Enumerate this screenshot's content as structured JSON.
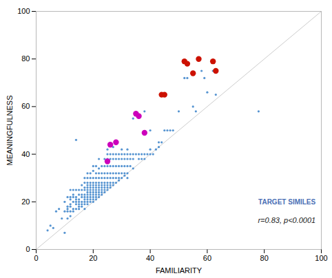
{
  "chart_data": {
    "type": "scatter",
    "title": "",
    "xlabel": "FAMILIARITY",
    "ylabel": "MEANINGFULNESS",
    "xlim": [
      0,
      100
    ],
    "ylim": [
      0,
      100
    ],
    "xticks": [
      0,
      20,
      40,
      60,
      80,
      100
    ],
    "yticks": [
      0,
      20,
      40,
      60,
      80,
      100
    ],
    "grid": false,
    "reference_line": {
      "x": [
        0,
        100
      ],
      "y": [
        0,
        100
      ],
      "color": "#cccccc"
    },
    "series": [
      {
        "color": "#4488cc",
        "marker": "small",
        "values": [
          [
            4,
            8
          ],
          [
            5,
            10
          ],
          [
            6,
            9
          ],
          [
            7,
            16
          ],
          [
            8,
            17
          ],
          [
            9,
            13
          ],
          [
            10,
            7
          ],
          [
            10,
            16
          ],
          [
            10,
            20
          ],
          [
            11,
            13
          ],
          [
            11,
            16
          ],
          [
            11,
            17
          ],
          [
            11,
            18
          ],
          [
            11,
            22
          ],
          [
            12,
            14
          ],
          [
            12,
            16
          ],
          [
            12,
            18
          ],
          [
            12,
            19
          ],
          [
            12,
            21
          ],
          [
            12,
            22
          ],
          [
            12,
            25
          ],
          [
            13,
            16
          ],
          [
            13,
            17
          ],
          [
            13,
            20
          ],
          [
            13,
            22
          ],
          [
            13,
            23
          ],
          [
            13,
            25
          ],
          [
            14,
            17
          ],
          [
            14,
            19
          ],
          [
            14,
            20
          ],
          [
            14,
            21
          ],
          [
            14,
            22
          ],
          [
            14,
            25
          ],
          [
            14,
            46
          ],
          [
            15,
            17
          ],
          [
            15,
            18
          ],
          [
            15,
            19
          ],
          [
            15,
            20
          ],
          [
            15,
            21
          ],
          [
            15,
            23
          ],
          [
            15,
            25
          ],
          [
            16,
            18
          ],
          [
            16,
            19
          ],
          [
            16,
            20
          ],
          [
            16,
            22
          ],
          [
            16,
            23
          ],
          [
            16,
            25
          ],
          [
            16,
            27
          ],
          [
            17,
            17
          ],
          [
            17,
            19
          ],
          [
            17,
            20
          ],
          [
            17,
            21
          ],
          [
            17,
            22
          ],
          [
            17,
            23
          ],
          [
            17,
            25
          ],
          [
            17,
            26
          ],
          [
            17,
            28
          ],
          [
            17,
            30
          ],
          [
            18,
            19
          ],
          [
            18,
            20
          ],
          [
            18,
            21
          ],
          [
            18,
            22
          ],
          [
            18,
            23
          ],
          [
            18,
            24
          ],
          [
            18,
            25
          ],
          [
            18,
            26
          ],
          [
            18,
            27
          ],
          [
            18,
            28
          ],
          [
            18,
            30
          ],
          [
            18,
            32
          ],
          [
            19,
            20
          ],
          [
            19,
            21
          ],
          [
            19,
            22
          ],
          [
            19,
            23
          ],
          [
            19,
            24
          ],
          [
            19,
            25
          ],
          [
            19,
            26
          ],
          [
            19,
            27
          ],
          [
            19,
            28
          ],
          [
            19,
            30
          ],
          [
            19,
            32
          ],
          [
            20,
            20
          ],
          [
            20,
            21
          ],
          [
            20,
            22
          ],
          [
            20,
            23
          ],
          [
            20,
            24
          ],
          [
            20,
            25
          ],
          [
            20,
            26
          ],
          [
            20,
            27
          ],
          [
            20,
            28
          ],
          [
            20,
            30
          ],
          [
            20,
            33
          ],
          [
            20,
            35
          ],
          [
            21,
            21
          ],
          [
            21,
            22
          ],
          [
            21,
            23
          ],
          [
            21,
            24
          ],
          [
            21,
            25
          ],
          [
            21,
            26
          ],
          [
            21,
            27
          ],
          [
            21,
            28
          ],
          [
            21,
            30
          ],
          [
            21,
            32
          ],
          [
            21,
            35
          ],
          [
            22,
            22
          ],
          [
            22,
            23
          ],
          [
            22,
            24
          ],
          [
            22,
            25
          ],
          [
            22,
            26
          ],
          [
            22,
            27
          ],
          [
            22,
            28
          ],
          [
            22,
            30
          ],
          [
            22,
            32
          ],
          [
            22,
            34
          ],
          [
            22,
            38
          ],
          [
            23,
            23
          ],
          [
            23,
            24
          ],
          [
            23,
            25
          ],
          [
            23,
            26
          ],
          [
            23,
            27
          ],
          [
            23,
            28
          ],
          [
            23,
            30
          ],
          [
            23,
            32
          ],
          [
            23,
            35
          ],
          [
            24,
            24
          ],
          [
            24,
            25
          ],
          [
            24,
            26
          ],
          [
            24,
            27
          ],
          [
            24,
            28
          ],
          [
            24,
            30
          ],
          [
            24,
            32
          ],
          [
            24,
            35
          ],
          [
            24,
            38
          ],
          [
            25,
            25
          ],
          [
            25,
            26
          ],
          [
            25,
            27
          ],
          [
            25,
            28
          ],
          [
            25,
            30
          ],
          [
            25,
            32
          ],
          [
            25,
            35
          ],
          [
            25,
            38
          ],
          [
            25,
            40
          ],
          [
            25,
            42
          ],
          [
            26,
            26
          ],
          [
            26,
            27
          ],
          [
            26,
            28
          ],
          [
            26,
            30
          ],
          [
            26,
            32
          ],
          [
            26,
            35
          ],
          [
            26,
            38
          ],
          [
            26,
            40
          ],
          [
            27,
            27
          ],
          [
            27,
            28
          ],
          [
            27,
            30
          ],
          [
            27,
            32
          ],
          [
            27,
            35
          ],
          [
            27,
            38
          ],
          [
            27,
            40
          ],
          [
            27,
            43
          ],
          [
            28,
            28
          ],
          [
            28,
            30
          ],
          [
            28,
            32
          ],
          [
            28,
            35
          ],
          [
            28,
            38
          ],
          [
            28,
            40
          ],
          [
            29,
            29
          ],
          [
            29,
            30
          ],
          [
            29,
            32
          ],
          [
            29,
            35
          ],
          [
            29,
            38
          ],
          [
            29,
            40
          ],
          [
            30,
            30
          ],
          [
            30,
            32
          ],
          [
            30,
            35
          ],
          [
            30,
            38
          ],
          [
            30,
            40
          ],
          [
            30,
            42
          ],
          [
            31,
            31
          ],
          [
            31,
            32
          ],
          [
            31,
            35
          ],
          [
            31,
            38
          ],
          [
            31,
            40
          ],
          [
            32,
            30
          ],
          [
            32,
            32
          ],
          [
            32,
            35
          ],
          [
            32,
            38
          ],
          [
            32,
            40
          ],
          [
            32,
            42
          ],
          [
            33,
            35
          ],
          [
            33,
            38
          ],
          [
            33,
            40
          ],
          [
            34,
            34
          ],
          [
            34,
            38
          ],
          [
            34,
            40
          ],
          [
            34,
            55
          ],
          [
            35,
            40
          ],
          [
            36,
            38
          ],
          [
            36,
            40
          ],
          [
            37,
            38
          ],
          [
            37,
            40
          ],
          [
            38,
            38
          ],
          [
            38,
            40
          ],
          [
            38,
            58
          ],
          [
            39,
            40
          ],
          [
            40,
            40
          ],
          [
            40,
            42
          ],
          [
            40,
            50
          ],
          [
            41,
            40
          ],
          [
            42,
            42
          ],
          [
            43,
            43
          ],
          [
            43,
            45
          ],
          [
            44,
            45
          ],
          [
            45,
            50
          ],
          [
            46,
            50
          ],
          [
            47,
            50
          ],
          [
            48,
            50
          ],
          [
            50,
            58
          ],
          [
            52,
            72
          ],
          [
            53,
            72
          ],
          [
            55,
            60
          ],
          [
            56,
            58
          ],
          [
            58,
            75
          ],
          [
            59,
            72
          ],
          [
            60,
            66
          ],
          [
            62,
            75
          ],
          [
            63,
            65
          ],
          [
            78,
            58
          ]
        ]
      },
      {
        "color": "#cc1100",
        "marker": "large",
        "values": [
          [
            44,
            65
          ],
          [
            45,
            65
          ],
          [
            52,
            79
          ],
          [
            53,
            78
          ],
          [
            55,
            74
          ],
          [
            57,
            80
          ],
          [
            62,
            79
          ],
          [
            63,
            75
          ]
        ]
      },
      {
        "color": "#cc00bb",
        "marker": "large",
        "values": [
          [
            25,
            37
          ],
          [
            26,
            44
          ],
          [
            28,
            45
          ],
          [
            35,
            57
          ],
          [
            36,
            56
          ],
          [
            38,
            49
          ]
        ]
      }
    ],
    "annotations": [
      {
        "text": "TARGET SIMILES",
        "color": "#4a6fb5"
      },
      {
        "text": "r=0.83, p<0.0001",
        "color": "#222222"
      }
    ]
  }
}
